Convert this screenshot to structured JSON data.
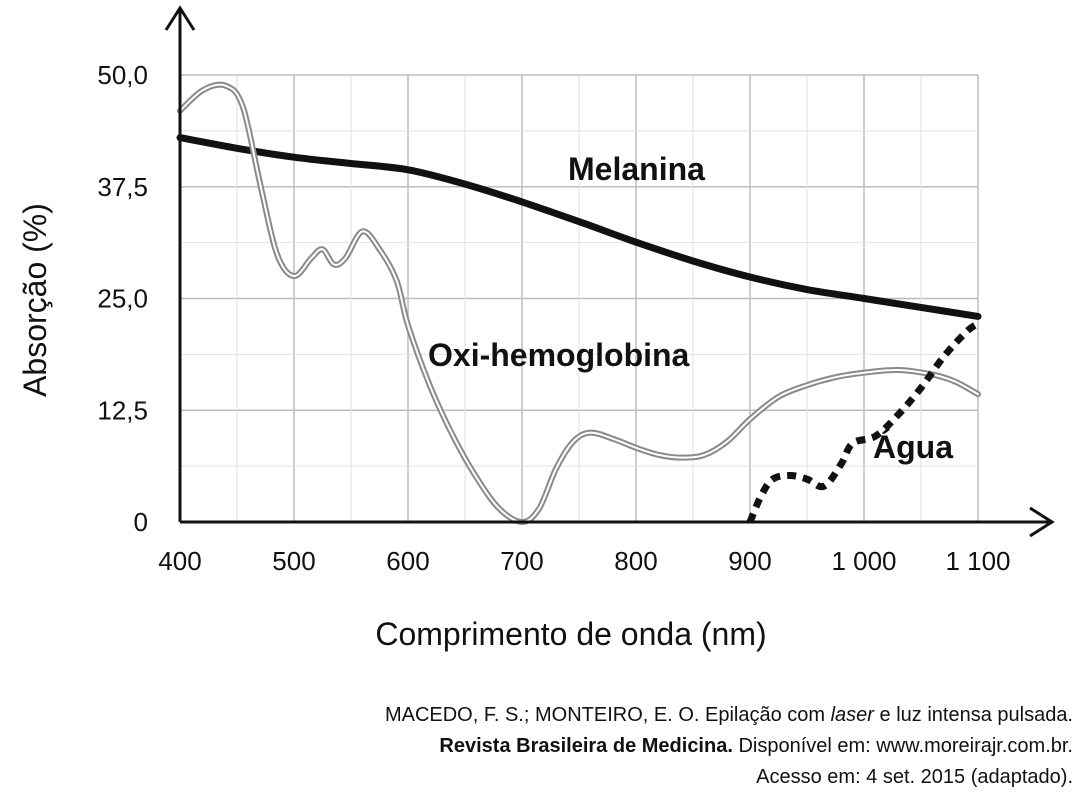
{
  "chart_data": {
    "type": "line",
    "xlabel": "Comprimento de onda (nm)",
    "ylabel": "Absorção (%)",
    "xlim": [
      400,
      1100
    ],
    "ylim": [
      0,
      50
    ],
    "x_ticks": [
      400,
      500,
      600,
      700,
      800,
      900,
      1000,
      1100
    ],
    "x_tick_labels": [
      "400",
      "500",
      "600",
      "700",
      "800",
      "900",
      "1 000",
      "1 100"
    ],
    "y_ticks": [
      0,
      12.5,
      25,
      37.5,
      50
    ],
    "y_tick_labels": [
      "0",
      "12,5",
      "25,0",
      "37,5",
      "50,0"
    ],
    "grid": true,
    "series": [
      {
        "name": "Melanina",
        "style": "solid-thick",
        "color": "#111111",
        "x": [
          400,
          450,
          500,
          550,
          600,
          650,
          700,
          750,
          800,
          850,
          900,
          950,
          1000,
          1050,
          1100
        ],
        "y": [
          43.0,
          41.8,
          40.8,
          40.1,
          39.4,
          37.8,
          35.8,
          33.6,
          31.3,
          29.2,
          27.4,
          26.0,
          25.0,
          24.0,
          23.0
        ]
      },
      {
        "name": "Oxi-hemoglobina",
        "style": "double-gray",
        "color": "#8a8a8a",
        "x": [
          400,
          420,
          440,
          455,
          470,
          485,
          500,
          515,
          525,
          535,
          545,
          560,
          575,
          590,
          600,
          620,
          640,
          660,
          680,
          700,
          715,
          730,
          745,
          760,
          780,
          800,
          820,
          840,
          860,
          880,
          900,
          925,
          950,
          975,
          1000,
          1030,
          1060,
          1080,
          1100
        ],
        "y": [
          46.0,
          48.3,
          48.8,
          46.5,
          38.0,
          30.0,
          27.5,
          29.5,
          30.5,
          28.8,
          29.5,
          32.5,
          30.5,
          27.0,
          22.0,
          15.0,
          9.5,
          5.0,
          1.5,
          0.0,
          1.5,
          6.0,
          9.0,
          10.0,
          9.3,
          8.3,
          7.5,
          7.2,
          7.5,
          9.0,
          11.5,
          14.0,
          15.3,
          16.2,
          16.7,
          17.0,
          16.5,
          15.7,
          14.3
        ]
      },
      {
        "name": "Água",
        "style": "dotted-thick",
        "color": "#111111",
        "x": [
          900,
          910,
          920,
          935,
          950,
          965,
          980,
          990,
          1010,
          1030,
          1050,
          1070,
          1090,
          1100
        ],
        "y": [
          0.0,
          3.0,
          4.8,
          5.2,
          4.8,
          4.0,
          6.5,
          8.8,
          9.6,
          12.0,
          15.0,
          18.5,
          21.3,
          22.2
        ]
      }
    ],
    "annotations": [
      "Melanina",
      "Oxi-hemoglobina",
      "Água"
    ]
  },
  "source": {
    "line1_authors": "MACEDO, F. S.; MONTEIRO, E. O. Epilação com ",
    "line1_italic": "laser",
    "line1_rest": " e luz intensa pulsada.",
    "line2_journal": "Revista Brasileira de Medicina.",
    "line2_rest": " Disponível em: www.moreirajr.com.br.",
    "line3": "Acesso em: 4 set. 2015 (adaptado)."
  }
}
